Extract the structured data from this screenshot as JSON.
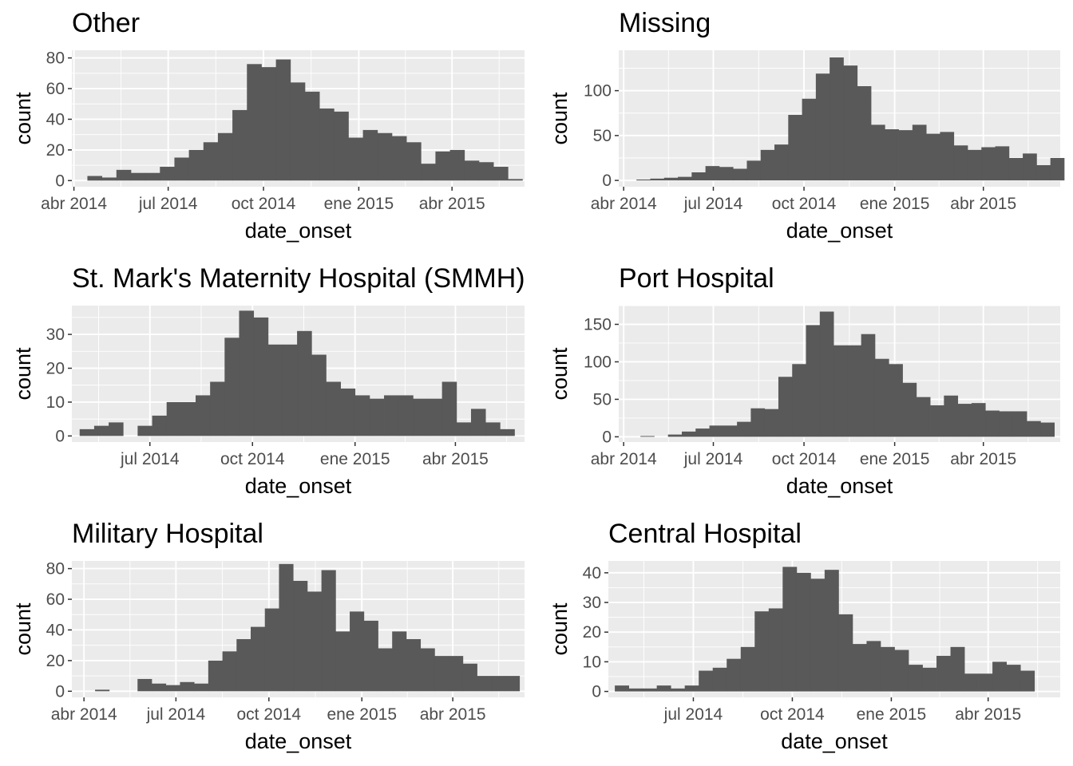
{
  "colors": {
    "panel_bg": "#EBEBEB",
    "grid": "#FFFFFF",
    "bar": "#595959",
    "tick_text": "#4D4D4D",
    "tick_mark": "#333333"
  },
  "chart_data": [
    {
      "type": "bar",
      "title": "Other",
      "xlabel": "date_onset",
      "ylabel": "count",
      "grid": true,
      "bin_start": "2014-04-14",
      "bin_width_days": 14,
      "values": [
        3,
        2,
        7,
        5,
        5,
        9,
        15,
        20,
        25,
        31,
        46,
        76,
        74,
        79,
        64,
        58,
        47,
        45,
        28,
        33,
        31,
        29,
        25,
        11,
        19,
        20,
        13,
        12,
        9,
        1
      ],
      "ylim": [
        -4,
        85
      ],
      "yticks": [
        0,
        20,
        40,
        60,
        80
      ],
      "xlim": [
        "2014-03-30",
        "2015-06-10"
      ],
      "xticks": [
        {
          "date": "2014-04-01",
          "label": "abr 2014"
        },
        {
          "date": "2014-07-01",
          "label": "jul 2014"
        },
        {
          "date": "2014-10-01",
          "label": "oct 2014"
        },
        {
          "date": "2015-01-01",
          "label": "ene 2015"
        },
        {
          "date": "2015-04-01",
          "label": "abr 2015"
        }
      ]
    },
    {
      "type": "bar",
      "title": "Missing",
      "xlabel": "date_onset",
      "ylabel": "count",
      "grid": true,
      "bin_start": "2014-04-14",
      "bin_width_days": 14,
      "values": [
        1,
        2,
        3,
        4,
        9,
        16,
        15,
        13,
        22,
        34,
        40,
        73,
        91,
        119,
        137,
        128,
        105,
        62,
        57,
        56,
        62,
        52,
        54,
        39,
        34,
        37,
        38,
        25,
        30,
        17,
        25
      ],
      "ylim": [
        -7,
        145
      ],
      "yticks": [
        0,
        50,
        100
      ],
      "xlim": [
        "2014-03-27",
        "2015-06-18"
      ],
      "xticks": [
        {
          "date": "2014-04-01",
          "label": "abr 2014"
        },
        {
          "date": "2014-07-01",
          "label": "jul 2014"
        },
        {
          "date": "2014-10-01",
          "label": "oct 2014"
        },
        {
          "date": "2015-01-01",
          "label": "ene 2015"
        },
        {
          "date": "2015-04-01",
          "label": "abr 2015"
        }
      ]
    },
    {
      "type": "bar",
      "title": "St. Mark's Maternity Hospital (SMMH)",
      "xlabel": "date_onset",
      "ylabel": "count",
      "grid": true,
      "bin_start": "2014-04-29",
      "bin_width_days": 13,
      "values": [
        2,
        3,
        4,
        0,
        3,
        6,
        10,
        10,
        12,
        16,
        29,
        37,
        35,
        27,
        27,
        31,
        24,
        16,
        14,
        12,
        11,
        12,
        12,
        11,
        11,
        16,
        4,
        8,
        4,
        2
      ],
      "ylim": [
        -1.8,
        38.5
      ],
      "yticks": [
        0,
        10,
        20,
        30
      ],
      "xlim": [
        "2014-04-22",
        "2015-06-02"
      ],
      "xticks": [
        {
          "date": "2014-07-01",
          "label": "jul 2014"
        },
        {
          "date": "2014-10-01",
          "label": "oct 2014"
        },
        {
          "date": "2015-01-01",
          "label": "ene 2015"
        },
        {
          "date": "2015-04-01",
          "label": "abr 2015"
        }
      ]
    },
    {
      "type": "bar",
      "title": "Port Hospital",
      "xlabel": "date_onset",
      "ylabel": "count",
      "grid": true,
      "bin_start": "2014-04-04",
      "bin_width_days": 14,
      "values": [
        0,
        1,
        0,
        3,
        7,
        11,
        15,
        15,
        20,
        38,
        37,
        80,
        97,
        149,
        167,
        122,
        122,
        137,
        104,
        97,
        72,
        53,
        42,
        55,
        44,
        45,
        35,
        34,
        34,
        21,
        19
      ],
      "ylim": [
        -7,
        175
      ],
      "yticks": [
        0,
        50,
        100,
        150
      ],
      "xlim": [
        "2014-03-27",
        "2015-06-18"
      ],
      "xticks": [
        {
          "date": "2014-04-01",
          "label": "abr 2014"
        },
        {
          "date": "2014-07-01",
          "label": "jul 2014"
        },
        {
          "date": "2014-10-01",
          "label": "oct 2014"
        },
        {
          "date": "2015-01-01",
          "label": "ene 2015"
        },
        {
          "date": "2015-04-01",
          "label": "abr 2015"
        }
      ]
    },
    {
      "type": "bar",
      "title": "Military Hospital",
      "xlabel": "date_onset",
      "ylabel": "count",
      "grid": true,
      "bin_start": "2014-03-29",
      "bin_width_days": 14,
      "values": [
        0,
        1,
        0,
        0,
        8,
        5,
        4,
        6,
        5,
        20,
        26,
        34,
        42,
        54,
        83,
        72,
        65,
        79,
        39,
        52,
        46,
        28,
        39,
        34,
        28,
        23,
        23,
        18,
        10,
        10,
        10
      ],
      "ylim": [
        -4,
        85
      ],
      "yticks": [
        0,
        20,
        40,
        60,
        80
      ],
      "xlim": [
        "2014-03-20",
        "2015-06-11"
      ],
      "xticks": [
        {
          "date": "2014-04-01",
          "label": "abr 2014"
        },
        {
          "date": "2014-07-01",
          "label": "jul 2014"
        },
        {
          "date": "2014-10-01",
          "label": "oct 2014"
        },
        {
          "date": "2015-01-01",
          "label": "ene 2015"
        },
        {
          "date": "2015-04-01",
          "label": "abr 2015"
        }
      ]
    },
    {
      "type": "bar",
      "title": "Central Hospital",
      "xlabel": "date_onset",
      "ylabel": "count",
      "grid": true,
      "bin_start": "2014-04-19",
      "bin_width_days": 13,
      "values": [
        2,
        1,
        1,
        2,
        1,
        2,
        7,
        8,
        11,
        15,
        27,
        28,
        42,
        40,
        38,
        41,
        26,
        16,
        17,
        15,
        14,
        9,
        8,
        12,
        15,
        6,
        6,
        10,
        9,
        7
      ],
      "ylim": [
        -2,
        44
      ],
      "yticks": [
        0,
        10,
        20,
        30,
        40
      ],
      "xlim": [
        "2014-04-13",
        "2015-06-07"
      ],
      "xticks": [
        {
          "date": "2014-07-01",
          "label": "jul 2014"
        },
        {
          "date": "2014-10-01",
          "label": "oct 2014"
        },
        {
          "date": "2015-01-01",
          "label": "ene 2015"
        },
        {
          "date": "2015-04-01",
          "label": "abr 2015"
        }
      ]
    }
  ]
}
